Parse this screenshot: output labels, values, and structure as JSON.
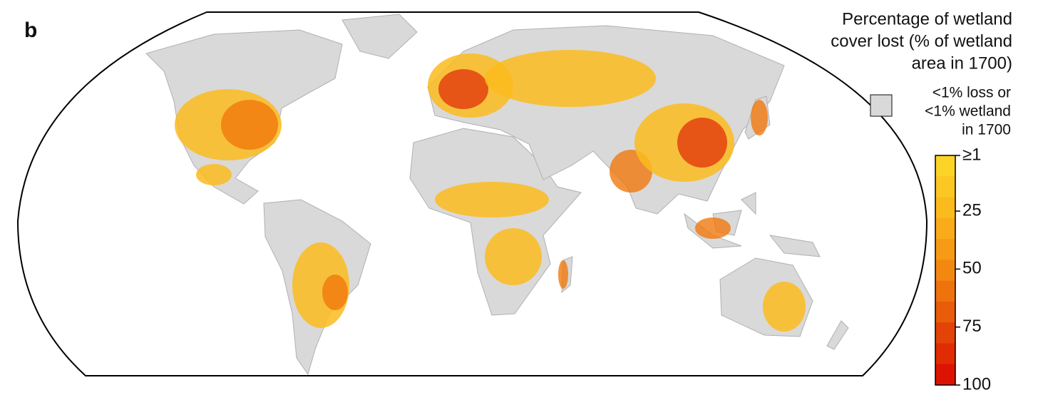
{
  "panel_label": "b",
  "legend": {
    "title_lines": [
      "Percentage of wetland",
      "cover lost (% of wetland",
      "area in 1700)"
    ],
    "no_data_color": "#d9d9d9",
    "no_data_lines": [
      "<1% loss or",
      "<1% wetland",
      "in 1700"
    ]
  },
  "colorbar": {
    "ylim": [
      1,
      100
    ],
    "ticks": [
      {
        "value": 1,
        "label": "≥1"
      },
      25,
      50,
      75,
      100
    ],
    "colors": [
      "#fcd327",
      "#fcc722",
      "#fbbb1e",
      "#f9ab1a",
      "#f79a15",
      "#f38811",
      "#ee730d",
      "#e85c0a",
      "#e34306",
      "#e02b03",
      "#dd1301"
    ]
  }
}
